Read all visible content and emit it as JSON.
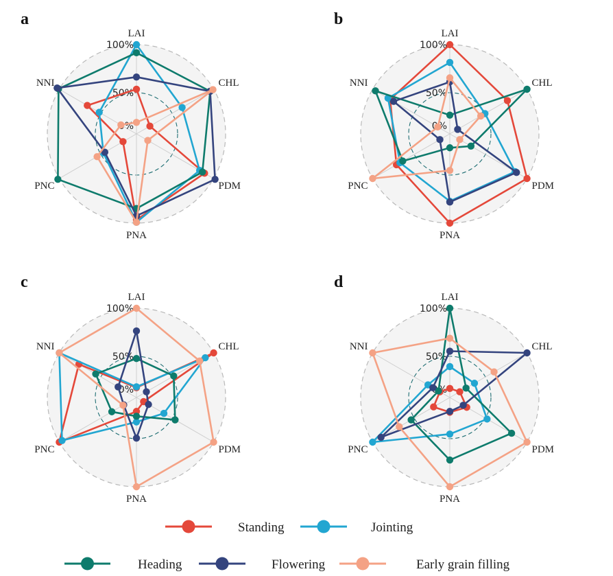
{
  "chart_data": {
    "type": "radar",
    "axes": [
      "LAI",
      "CHL",
      "PDM",
      "PNA",
      "PNC",
      "NNI"
    ],
    "ring_labels": [
      "0%",
      "50%",
      "100%"
    ],
    "series_names": [
      "Standing",
      "Jointing",
      "Heading",
      "Flowering",
      "Early grain filling"
    ],
    "colors": {
      "Standing": "#e4483a",
      "Jointing": "#22a6d1",
      "Heading": "#0e7b6c",
      "Flowering": "#34447e",
      "Early grain filling": "#f4a285"
    },
    "panels": [
      {
        "label": "a",
        "series": [
          {
            "name": "Standing",
            "values": [
              0.45,
              0.09,
              0.87,
              0.96,
              0.09,
              0.6
            ]
          },
          {
            "name": "Jointing",
            "values": [
              1.0,
              0.55,
              0.8,
              0.99,
              0.37,
              0.43
            ]
          },
          {
            "name": "Heading",
            "values": [
              0.9,
              0.95,
              0.84,
              0.82,
              1.02,
              1.01
            ]
          },
          {
            "name": "Flowering",
            "values": [
              0.6,
              0.95,
              1.02,
              0.91,
              0.35,
              1.03
            ]
          },
          {
            "name": "Early grain filling",
            "values": [
              0.04,
              0.99,
              0.06,
              0.99,
              0.46,
              0.12
            ]
          }
        ]
      },
      {
        "label": "b",
        "series": [
          {
            "name": "Standing",
            "values": [
              1.0,
              0.72,
              1.0,
              1.0,
              0.66,
              0.75
            ]
          },
          {
            "name": "Jointing",
            "values": [
              0.78,
              0.4,
              0.83,
              0.73,
              0.61,
              0.78
            ]
          },
          {
            "name": "Heading",
            "values": [
              0.13,
              1.0,
              0.2,
              0.07,
              0.57,
              0.96
            ]
          },
          {
            "name": "Flowering",
            "values": [
              0.54,
              0.01,
              0.85,
              0.74,
              0.04,
              0.7
            ]
          },
          {
            "name": "Early grain filling",
            "values": [
              0.59,
              0.34,
              0.04,
              0.35,
              1.0,
              0.07
            ]
          }
        ]
      },
      {
        "label": "c",
        "series": [
          {
            "name": "Standing",
            "values": [
              0.02,
              1.0,
              0.0,
              0.07,
              1.0,
              0.72
            ]
          },
          {
            "name": "Jointing",
            "values": [
              0.03,
              0.88,
              0.29,
              0.2,
              0.96,
              1.0
            ]
          },
          {
            "name": "Heading",
            "values": [
              0.38,
              0.43,
              0.45,
              0.13,
              0.25,
              0.48
            ]
          },
          {
            "name": "Flowering",
            "values": [
              0.72,
              0.04,
              0.07,
              0.4,
              0.08,
              0.16
            ]
          },
          {
            "name": "Early grain filling",
            "values": [
              1.0,
              0.8,
              1.0,
              1.0,
              0.09,
              1.0
            ]
          }
        ]
      },
      {
        "label": "d",
        "series": [
          {
            "name": "Standing",
            "values": [
              0.01,
              0.04,
              0.14,
              0.08,
              0.13,
              0.04
            ]
          },
          {
            "name": "Jointing",
            "values": [
              0.28,
              0.25,
              0.43,
              0.35,
              1.0,
              0.21
            ]
          },
          {
            "name": "Heading",
            "values": [
              1.0,
              0.13,
              0.78,
              0.67,
              0.45,
              0.06
            ]
          },
          {
            "name": "Flowering",
            "values": [
              0.47,
              1.0,
              0.09,
              0.07,
              0.88,
              0.14
            ]
          },
          {
            "name": "Early grain filling",
            "values": [
              0.63,
              0.53,
              1.0,
              1.0,
              0.62,
              1.0
            ]
          }
        ]
      }
    ]
  }
}
